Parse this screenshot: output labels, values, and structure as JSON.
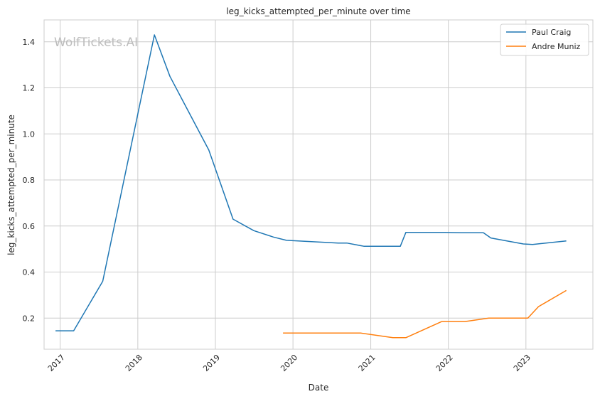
{
  "chart_data": {
    "type": "line",
    "title": "leg_kicks_attempted_per_minute over time",
    "xlabel": "Date",
    "ylabel": "leg_kicks_attempted_per_minute",
    "watermark": "WolfTickets.AI",
    "x_ticks": [
      "2017",
      "2018",
      "2019",
      "2020",
      "2021",
      "2022",
      "2023"
    ],
    "y_ticks": [
      "0.2",
      "0.4",
      "0.6",
      "0.8",
      "1.0",
      "1.2",
      "1.4"
    ],
    "xlim": [
      "2016-10-17",
      "2023-11-12"
    ],
    "ylim": [
      0.065,
      1.495
    ],
    "grid": true,
    "legend_position": "top-right",
    "series": [
      {
        "name": "Paul Craig",
        "color": "#1f77b4",
        "points": [
          [
            "2016-12-10",
            0.145
          ],
          [
            "2017-03-05",
            0.145
          ],
          [
            "2017-07-20",
            0.36
          ],
          [
            "2018-03-20",
            1.43
          ],
          [
            "2018-06-01",
            1.25
          ],
          [
            "2018-12-01",
            0.93
          ],
          [
            "2019-03-25",
            0.63
          ],
          [
            "2019-07-01",
            0.58
          ],
          [
            "2019-10-01",
            0.552
          ],
          [
            "2019-12-01",
            0.538
          ],
          [
            "2020-08-01",
            0.526
          ],
          [
            "2020-09-10",
            0.526
          ],
          [
            "2020-12-01",
            0.512
          ],
          [
            "2021-05-20",
            0.512
          ],
          [
            "2021-06-15",
            0.572
          ],
          [
            "2021-12-15",
            0.572
          ],
          [
            "2022-03-01",
            0.571
          ],
          [
            "2022-06-15",
            0.571
          ],
          [
            "2022-07-20",
            0.548
          ],
          [
            "2022-12-20",
            0.522
          ],
          [
            "2023-02-01",
            0.52
          ],
          [
            "2023-07-10",
            0.535
          ]
        ]
      },
      {
        "name": "Andre Muniz",
        "color": "#ff7f0e",
        "points": [
          [
            "2019-11-15",
            0.135
          ],
          [
            "2020-01-15",
            0.135
          ],
          [
            "2020-11-15",
            0.135
          ],
          [
            "2021-04-15",
            0.115
          ],
          [
            "2021-06-15",
            0.115
          ],
          [
            "2021-12-01",
            0.185
          ],
          [
            "2022-03-20",
            0.185
          ],
          [
            "2022-07-10",
            0.2
          ],
          [
            "2023-01-10",
            0.2
          ],
          [
            "2023-03-01",
            0.25
          ],
          [
            "2023-07-10",
            0.32
          ]
        ]
      }
    ]
  }
}
